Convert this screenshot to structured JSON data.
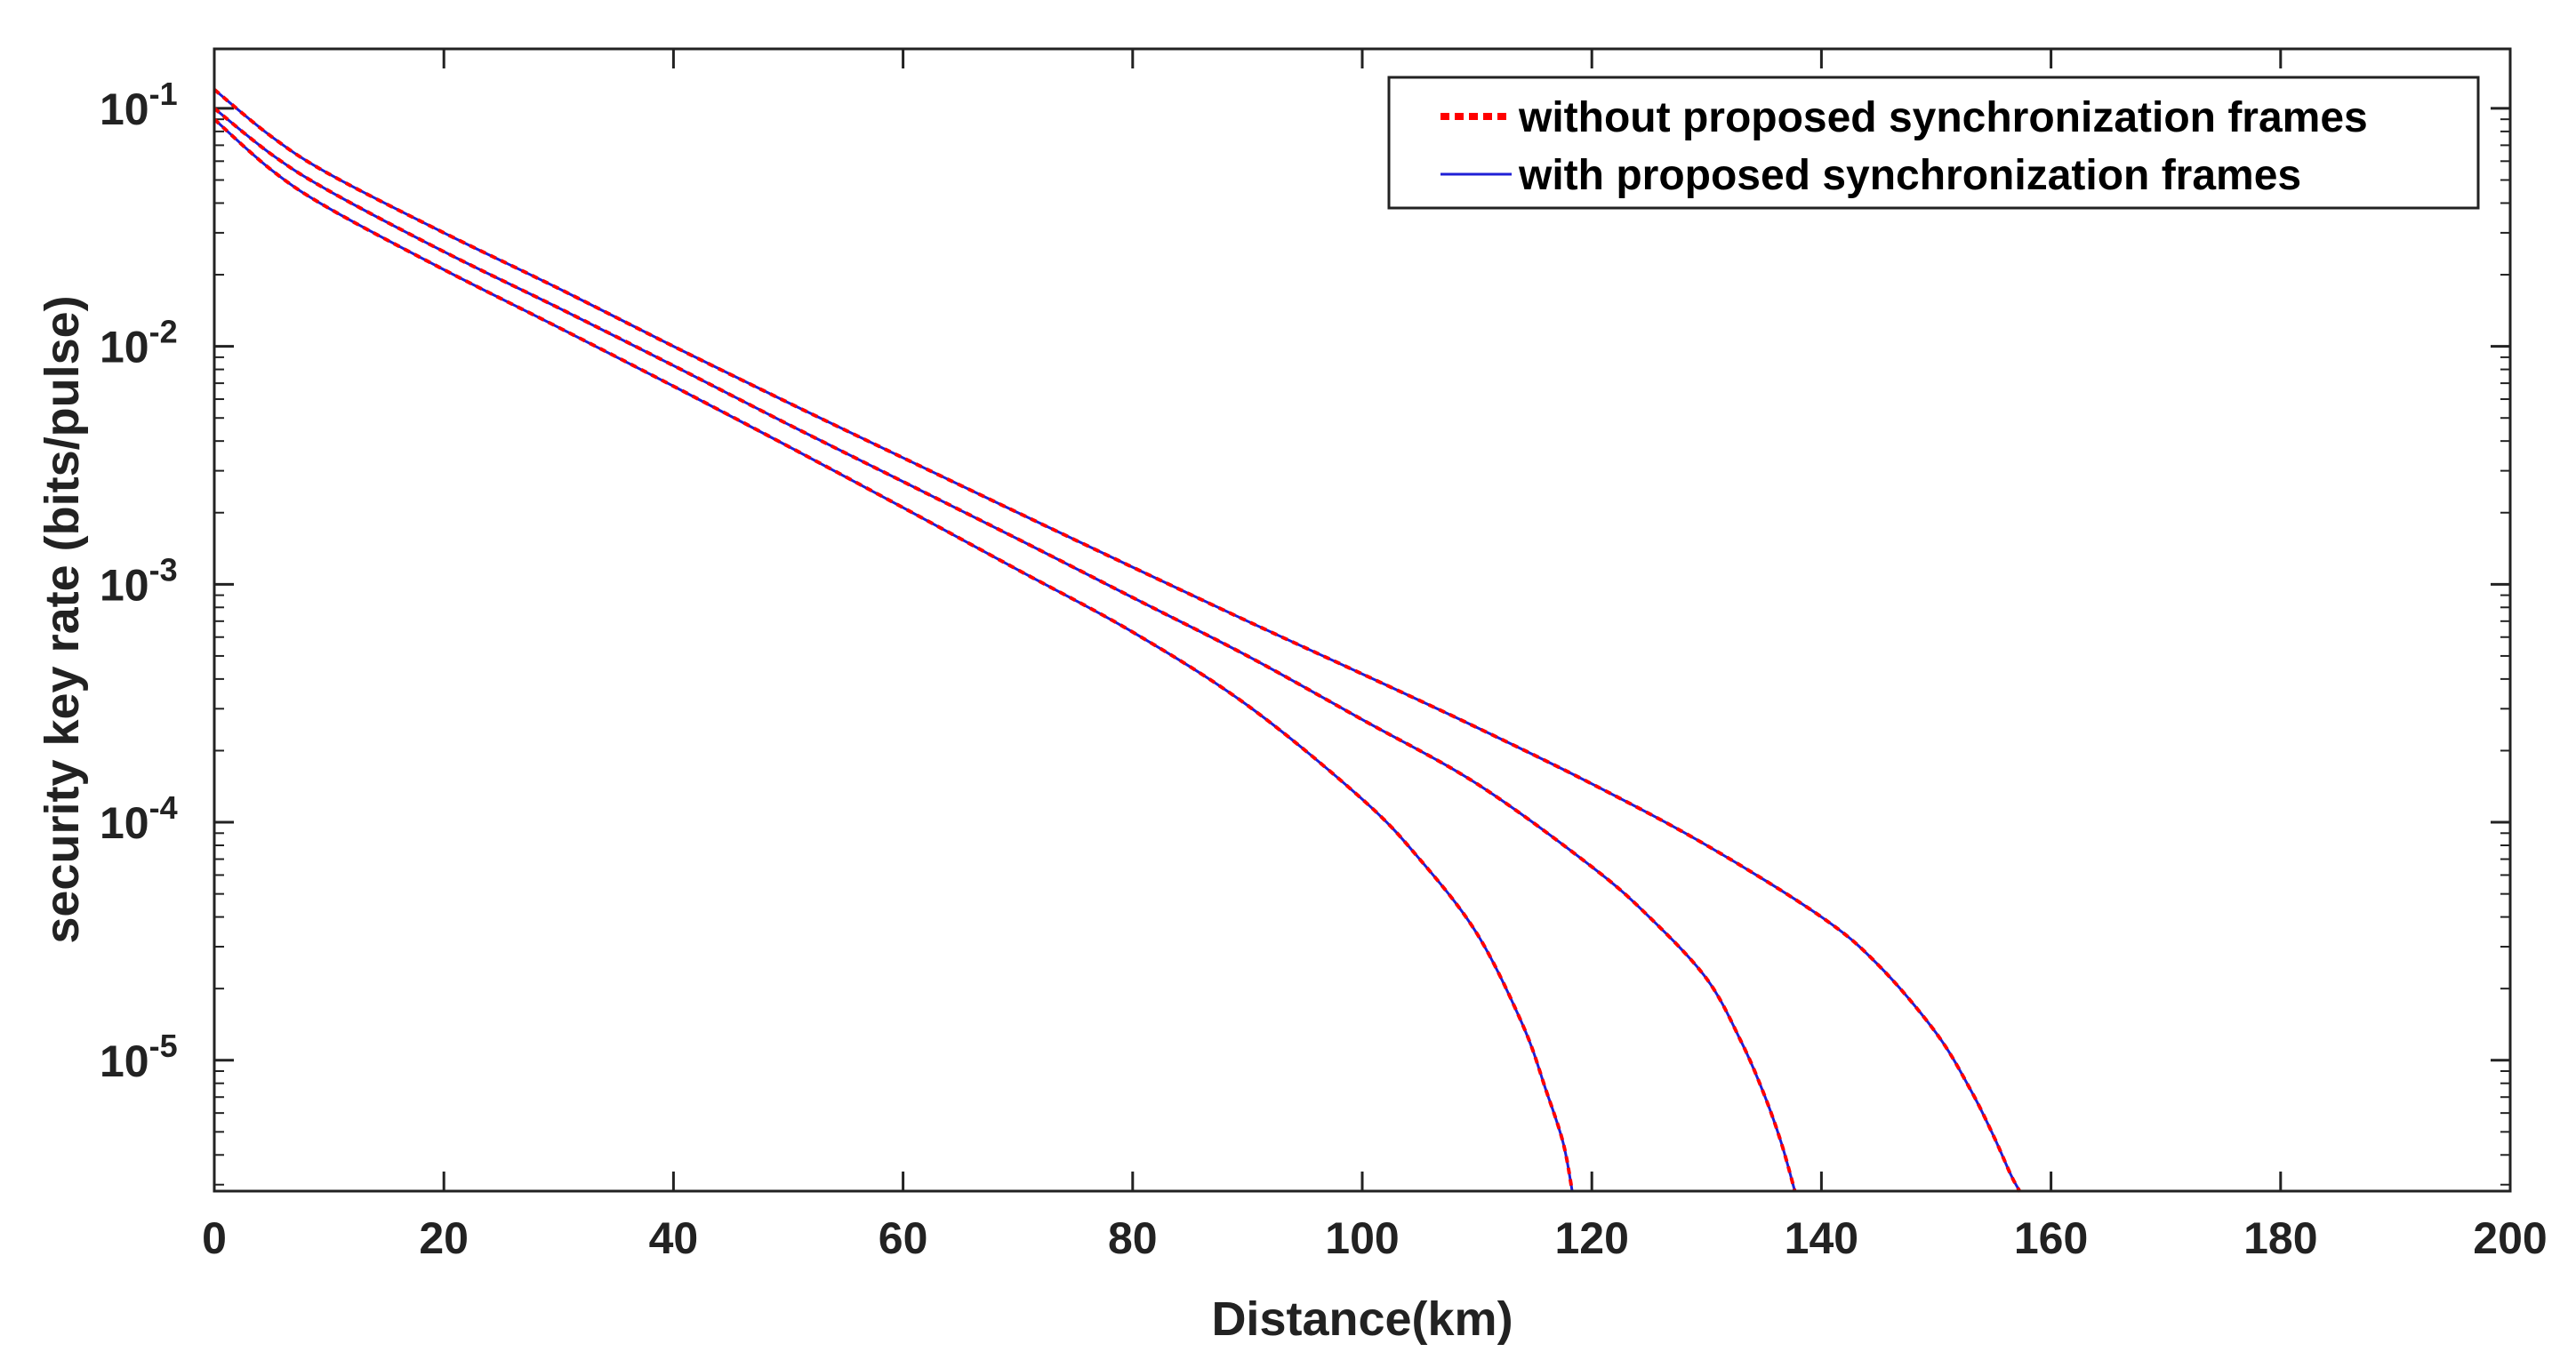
{
  "chart_data": {
    "type": "line",
    "title": "",
    "xlabel": "Distance(km)",
    "ylabel": "security key rate (bits/pulse)",
    "xlim": [
      0,
      200
    ],
    "ylim_log10": [
      -5.55,
      -0.75
    ],
    "yscale": "log",
    "grid": false,
    "legend_position": "top-right",
    "x_ticks": [
      0,
      20,
      40,
      60,
      80,
      100,
      120,
      140,
      160,
      180,
      200
    ],
    "y_ticks": [
      {
        "base": "10",
        "exp": "-1",
        "value": 0.1
      },
      {
        "base": "10",
        "exp": "-2",
        "value": 0.01
      },
      {
        "base": "10",
        "exp": "-3",
        "value": 0.001
      },
      {
        "base": "10",
        "exp": "-4",
        "value": 0.0001
      },
      {
        "base": "10",
        "exp": "-5",
        "value": 1e-05
      }
    ],
    "legend": [
      {
        "label": "without proposed synchronization frames",
        "color": "#ff0000",
        "style": "dotted"
      },
      {
        "label": "with proposed synchronization frames",
        "color": "#1f1fd6",
        "style": "solid"
      }
    ],
    "series": [
      {
        "name": "curve-1",
        "x": [
          0,
          5,
          10,
          20,
          30,
          40,
          50,
          60,
          70,
          80,
          90,
          100,
          105,
          110,
          114,
          116,
          117.5,
          118.3
        ],
        "y": [
          0.09,
          0.055,
          0.038,
          0.021,
          0.012,
          0.0068,
          0.0038,
          0.0021,
          0.00115,
          0.00063,
          0.00031,
          0.000125,
          7e-05,
          3.4e-05,
          1.4e-05,
          7.5e-06,
          4.5e-06,
          2.8e-06
        ]
      },
      {
        "name": "curve-2",
        "x": [
          0,
          5,
          10,
          20,
          30,
          40,
          50,
          60,
          70,
          80,
          90,
          100,
          110,
          120,
          125,
          130,
          133,
          135,
          136.5,
          137.7
        ],
        "y": [
          0.1,
          0.064,
          0.045,
          0.025,
          0.0145,
          0.0083,
          0.0047,
          0.0027,
          0.00155,
          0.00088,
          0.0005,
          0.00027,
          0.000145,
          6.5e-05,
          4e-05,
          2.2e-05,
          1.2e-05,
          7.2e-06,
          4.5e-06,
          2.8e-06
        ]
      },
      {
        "name": "curve-3",
        "x": [
          0,
          5,
          10,
          20,
          30,
          40,
          50,
          60,
          70,
          80,
          90,
          100,
          110,
          120,
          130,
          140,
          145,
          150,
          153,
          155,
          156.5,
          157.3
        ],
        "y": [
          0.12,
          0.076,
          0.053,
          0.03,
          0.0175,
          0.01,
          0.0058,
          0.0034,
          0.002,
          0.00118,
          0.0007,
          0.00042,
          0.00025,
          0.000145,
          8e-05,
          4e-05,
          2.5e-05,
          1.3e-05,
          7.5e-06,
          4.8e-06,
          3.3e-06,
          2.8e-06
        ]
      }
    ]
  }
}
